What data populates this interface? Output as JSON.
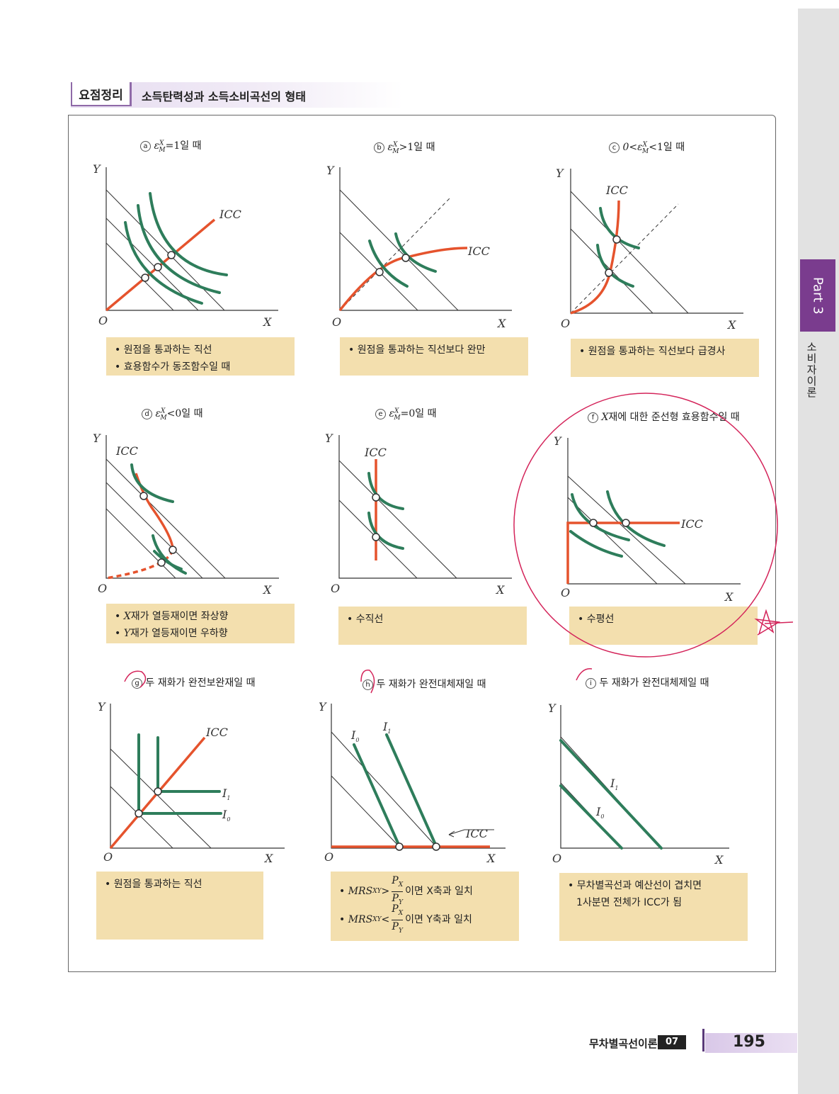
{
  "header": {
    "badge": "요점정리",
    "title": "소득탄력성과 소득소비곡선의 형태"
  },
  "axis_labels": {
    "y": "Y",
    "x": "X",
    "origin": "O",
    "icc": "ICC",
    "i0": "I",
    "i1": "I",
    "sub0": "0",
    "sub1": "1"
  },
  "panels": [
    {
      "letter": "a",
      "caption_pre": "ε",
      "caption_post": "=1일 때",
      "notes": [
        "• 원점을 통과하는 직선",
        "• 효용함수가 동조함수일 때"
      ]
    },
    {
      "letter": "b",
      "caption_pre": "ε",
      "caption_post": ">1일 때",
      "notes": [
        "• 원점을 통과하는 직선보다 완만"
      ]
    },
    {
      "letter": "c",
      "caption_pre": "0<ε",
      "caption_post": "<1일 때",
      "notes": [
        "• 원점을 통과하는 직선보다 급경사"
      ]
    },
    {
      "letter": "d",
      "caption_pre": "ε",
      "caption_post": "<0일 때",
      "notes_x": "재가 열등재이면 좌상향",
      "notes_y": "재가 열등재이면 우하향"
    },
    {
      "letter": "e",
      "caption_pre": "ε",
      "caption_post": "=0일 때",
      "notes": [
        "• 수직선"
      ]
    },
    {
      "letter": "f",
      "caption_pre": "X",
      "caption_post": "재에 대한 준선형 효용함수일 때",
      "notes": [
        "• 수평선"
      ]
    },
    {
      "letter": "g",
      "caption_post": "두 재화가 완전보완재일 때",
      "notes": [
        "• 원점을 통과하는 직선"
      ]
    },
    {
      "letter": "h",
      "caption_post": "두 재화가 완전대체재일 때",
      "notes_mrs": "MRS",
      "notes_xy": "XY",
      "notes_px": "P",
      "notes_py": "P",
      "notes_line1_post": "이면 X축과 일치",
      "notes_line2_post": "이면 Y축과 일치"
    },
    {
      "letter": "i",
      "caption_post": "두 재화가 완전대체제일 때",
      "notes": [
        "• 무차별곡선과 예산선이 겹치면",
        "1사분면 전체가 ICC가 됨"
      ]
    }
  ],
  "elasticity_sup": "X",
  "elasticity_sub": "M",
  "side_tab": {
    "part": "Part 3",
    "chapter": "소비자이론"
  },
  "footer": {
    "chapter": "무차별곡선이론",
    "chapter_num": "07",
    "page": "195"
  },
  "colors": {
    "icc": "#e5532d",
    "indifference": "#2e7d5b",
    "note_bg": "#f3dfae",
    "accent": "#7a3c8e"
  }
}
